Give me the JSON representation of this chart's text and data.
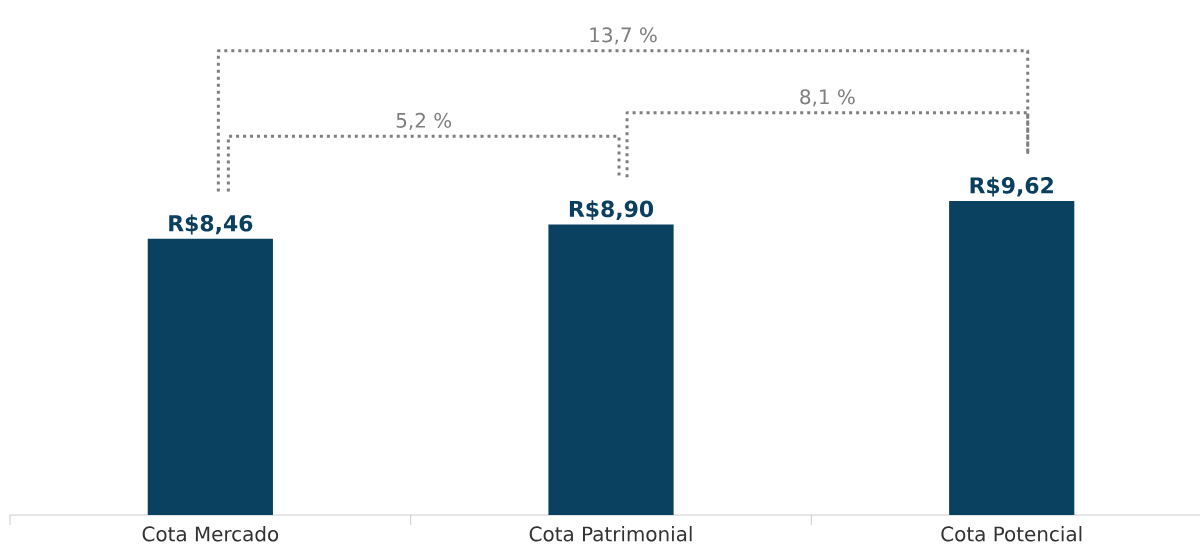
{
  "chart_data": {
    "type": "bar",
    "categories": [
      "Cota Mercado",
      "Cota Patrimonial",
      "Cota Potencial"
    ],
    "values": [
      8.46,
      8.9,
      9.62
    ],
    "color": "#0b4160",
    "value_labels": [
      "R$8,46",
      "R$8,90",
      "R$9,62"
    ],
    "annotations": [
      "5,2 %",
      "8,1 %",
      "13,7 %"
    ]
  }
}
